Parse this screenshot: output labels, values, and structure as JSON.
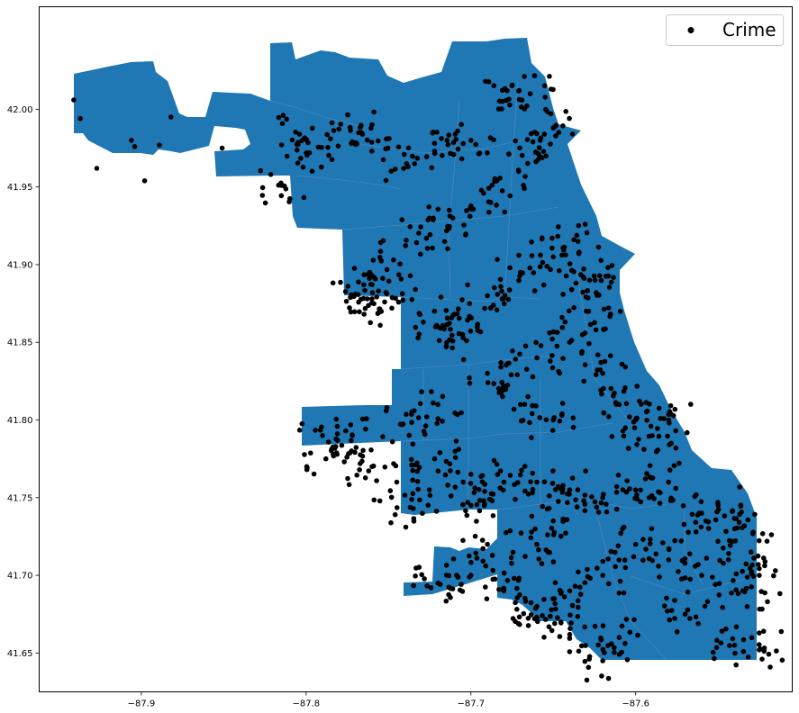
{
  "colors": {
    "area_fill": "#1f77b4",
    "boundary": "#4a8bbf",
    "point": "#000000",
    "frame": "#000000",
    "background": "#ffffff"
  },
  "legend": {
    "label": "Crime",
    "marker": "filled-circle",
    "placement": "top-right"
  },
  "chart_data": {
    "type": "scatter",
    "description_kind": "points over region map",
    "xlim": [
      -87.962,
      -87.505
    ],
    "ylim": [
      41.625,
      42.066
    ],
    "x_ticks": [
      -87.9,
      -87.8,
      -87.7,
      -87.6
    ],
    "x_tick_labels": [
      "−87.9",
      "−87.8",
      "−87.7",
      "−87.6"
    ],
    "y_ticks": [
      41.65,
      41.7,
      41.75,
      41.8,
      41.85,
      41.9,
      41.95,
      42.0
    ],
    "y_tick_labels": [
      "41.65",
      "41.70",
      "41.75",
      "41.80",
      "41.85",
      "41.90",
      "41.95",
      "42.00"
    ],
    "grid": false,
    "series": [
      {
        "name": "Crime",
        "marker": "circle",
        "color": "#000000",
        "points_note": "dense cluster of incident points; representative sample listed below",
        "sample_points": [
          [
            -87.941,
            42.006
          ],
          [
            -87.937,
            41.994
          ],
          [
            -87.927,
            41.962
          ],
          [
            -87.906,
            41.98
          ],
          [
            -87.904,
            41.976
          ],
          [
            -87.898,
            41.954
          ],
          [
            -87.889,
            41.977
          ],
          [
            -87.882,
            41.995
          ],
          [
            -87.851,
            41.975
          ],
          [
            -87.815,
            41.951
          ],
          [
            -87.804,
            41.984
          ],
          [
            -87.798,
            41.972
          ],
          [
            -87.772,
            41.979
          ],
          [
            -87.76,
            41.99
          ],
          [
            -87.739,
            41.965
          ],
          [
            -87.722,
            41.973
          ],
          [
            -87.7,
            41.98
          ],
          [
            -87.678,
            42.012
          ],
          [
            -87.664,
            42.01
          ],
          [
            -87.65,
            41.988
          ],
          [
            -87.658,
            41.98
          ],
          [
            -87.671,
            41.96
          ],
          [
            -87.688,
            41.94
          ],
          [
            -87.711,
            41.93
          ],
          [
            -87.727,
            41.917
          ],
          [
            -87.747,
            41.903
          ],
          [
            -87.765,
            41.887
          ],
          [
            -87.77,
            41.881
          ],
          [
            -87.76,
            41.878
          ],
          [
            -87.748,
            41.872
          ],
          [
            -87.72,
            41.86
          ],
          [
            -87.71,
            41.868
          ],
          [
            -87.705,
            41.855
          ],
          [
            -87.69,
            41.88
          ],
          [
            -87.67,
            41.895
          ],
          [
            -87.65,
            41.905
          ],
          [
            -87.635,
            41.915
          ],
          [
            -87.628,
            41.89
          ],
          [
            -87.624,
            41.882
          ],
          [
            -87.63,
            41.87
          ],
          [
            -87.64,
            41.85
          ],
          [
            -87.66,
            41.84
          ],
          [
            -87.69,
            41.83
          ],
          [
            -87.72,
            41.81
          ],
          [
            -87.742,
            41.797
          ],
          [
            -87.772,
            41.79
          ],
          [
            -87.79,
            41.79
          ],
          [
            -87.788,
            41.775
          ],
          [
            -87.76,
            41.77
          ],
          [
            -87.722,
            41.775
          ],
          [
            -87.7,
            41.765
          ],
          [
            -87.68,
            41.76
          ],
          [
            -87.66,
            41.76
          ],
          [
            -87.64,
            41.755
          ],
          [
            -87.62,
            41.75
          ],
          [
            -87.6,
            41.755
          ],
          [
            -87.58,
            41.76
          ],
          [
            -87.56,
            41.74
          ],
          [
            -87.55,
            41.745
          ],
          [
            -87.54,
            41.73
          ],
          [
            -87.53,
            41.715
          ],
          [
            -87.525,
            41.7
          ],
          [
            -87.535,
            41.69
          ],
          [
            -87.56,
            41.7
          ],
          [
            -87.58,
            41.71
          ],
          [
            -87.6,
            41.72
          ],
          [
            -87.62,
            41.7
          ],
          [
            -87.64,
            41.69
          ],
          [
            -87.66,
            41.68
          ],
          [
            -87.68,
            41.69
          ],
          [
            -87.7,
            41.7
          ],
          [
            -87.72,
            41.695
          ],
          [
            -87.69,
            41.72
          ],
          [
            -87.66,
            41.72
          ],
          [
            -87.65,
            41.735
          ],
          [
            -87.7,
            41.745
          ],
          [
            -87.735,
            41.743
          ],
          [
            -87.745,
            41.76
          ],
          [
            -87.61,
            41.66
          ],
          [
            -87.62,
            41.645
          ],
          [
            -87.64,
            41.662
          ],
          [
            -87.66,
            41.672
          ],
          [
            -87.57,
            41.675
          ],
          [
            -87.54,
            41.655
          ],
          [
            -87.525,
            41.652
          ],
          [
            -87.6,
            41.8
          ],
          [
            -87.62,
            41.83
          ],
          [
            -87.61,
            41.81
          ],
          [
            -87.59,
            41.79
          ],
          [
            -87.58,
            41.8
          ],
          [
            -87.65,
            41.8
          ],
          [
            -87.67,
            41.81
          ]
        ]
      }
    ]
  }
}
